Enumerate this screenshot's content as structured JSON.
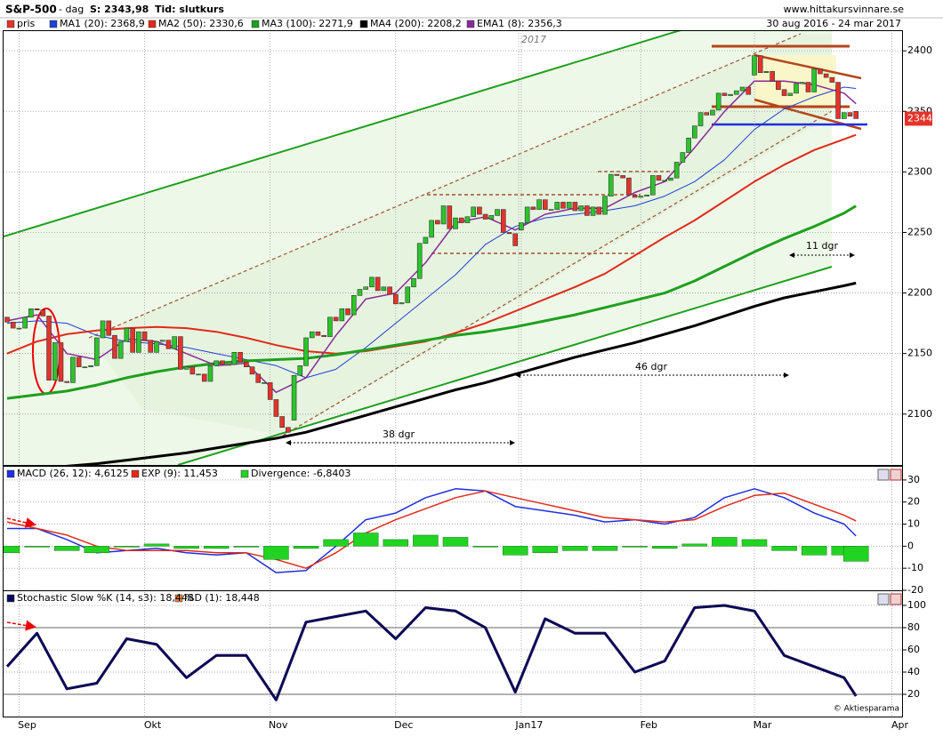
{
  "header": {
    "title": "S&P-500",
    "period": "- dag",
    "last": "S: 2343,98",
    "time": "Tid: slutkurs",
    "site": "www.hittakursvinnare.se"
  },
  "chart_data": [
    {
      "type": "candlestick",
      "subtitle": "30 aug 2016 - 24 mar 2017",
      "categories": [
        null,
        null,
        "Sep",
        null,
        null,
        null,
        null,
        null,
        null,
        null,
        null,
        null,
        null,
        null,
        null,
        null,
        null,
        null,
        null,
        null,
        null,
        null,
        null,
        "Okt",
        null,
        null,
        null,
        null,
        null,
        null,
        null,
        null,
        null,
        null,
        null,
        null,
        null,
        null,
        null,
        null,
        null,
        null,
        null,
        null,
        "Nov",
        null,
        null,
        null,
        null,
        null,
        null,
        null,
        null,
        null,
        null,
        null,
        null,
        null,
        null,
        null,
        null,
        null,
        null,
        null,
        null,
        "Dec",
        null,
        null,
        null,
        null,
        null,
        null,
        null,
        null,
        null,
        null,
        null,
        null,
        null,
        null,
        null,
        null,
        null,
        null,
        null,
        null,
        "Jan17",
        null,
        null,
        null,
        null,
        null,
        null,
        null,
        null,
        null,
        null,
        null,
        null,
        null,
        null,
        null,
        null,
        null,
        null,
        null,
        "Feb",
        null,
        null,
        null,
        null,
        null,
        null,
        null,
        null,
        null,
        null,
        null,
        null,
        null,
        null,
        null,
        null,
        null,
        null,
        "Mar",
        null,
        null,
        null,
        null,
        null,
        null,
        null,
        null,
        null,
        null,
        null,
        null,
        null,
        null,
        null,
        null,
        null,
        null,
        null,
        null,
        null,
        null,
        "Apr"
      ],
      "candles": {
        "name": "pris",
        "up_color": "#2bc52b",
        "down_color": "#e5332a",
        "open": [
          2180,
          2176,
          2171,
          2171,
          2180,
          2187,
          2186,
          2181,
          2128,
          2159,
          2127,
          2126,
          2147,
          2139,
          2139,
          2140,
          2163,
          2177,
          2165,
          2146,
          2160,
          2171,
          2151,
          2168,
          2161,
          2151,
          2160,
          2161,
          2154,
          2164,
          2137,
          2139,
          2133,
          2133,
          2127,
          2140,
          2144,
          2141,
          2141,
          2151,
          2143,
          2139,
          2133,
          2126,
          2126,
          2112,
          2098,
          2089,
          2095,
          2132,
          2140,
          2163,
          2168,
          2165,
          2164,
          2180,
          2177,
          2187,
          2182,
          2198,
          2203,
          2205,
          2213,
          2202,
          2205,
          2199,
          2191,
          2192,
          2205,
          2212,
          2241,
          2246,
          2260,
          2257,
          2272,
          2253,
          2262,
          2258,
          2263,
          2271,
          2265,
          2261,
          2264,
          2269,
          2250,
          2249,
          2252,
          2258,
          2271,
          2269,
          2277,
          2269,
          2269,
          2275,
          2270,
          2275,
          2268,
          2272,
          2264,
          2271,
          2265,
          2280,
          2298,
          2297,
          2295,
          2281,
          2279,
          2280,
          2281,
          2297,
          2293,
          2293,
          2295,
          2308,
          2316,
          2328,
          2338,
          2349,
          2347,
          2351,
          2365,
          2363,
          2364,
          2367,
          2370,
          2380,
          2396,
          2382,
          2383,
          2375,
          2368,
          2363,
          2365,
          2373,
          2374,
          2366,
          2385,
          2381,
          2378,
          2374,
          2344,
          2349,
          2350,
          null,
          null,
          null,
          null,
          null,
          null
        ],
        "close": [
          2176,
          2171,
          2171,
          2180,
          2187,
          2186,
          2181,
          2128,
          2159,
          2127,
          2126,
          2147,
          2139,
          2139,
          2140,
          2163,
          2177,
          2165,
          2146,
          2160,
          2171,
          2151,
          2168,
          2161,
          2151,
          2160,
          2161,
          2154,
          2164,
          2137,
          2139,
          2133,
          2133,
          2127,
          2140,
          2144,
          2141,
          2141,
          2151,
          2143,
          2139,
          2133,
          2126,
          2126,
          2112,
          2098,
          2089,
          2085,
          2132,
          2140,
          2163,
          2168,
          2165,
          2164,
          2180,
          2177,
          2187,
          2182,
          2198,
          2203,
          2205,
          2213,
          2202,
          2205,
          2199,
          2191,
          2192,
          2205,
          2212,
          2241,
          2246,
          2260,
          2257,
          2272,
          2253,
          2262,
          2258,
          2263,
          2271,
          2265,
          2261,
          2264,
          2269,
          2250,
          2249,
          2239,
          2258,
          2271,
          2269,
          2277,
          2269,
          2269,
          2275,
          2270,
          2275,
          2268,
          2272,
          2264,
          2271,
          2265,
          2280,
          2298,
          2297,
          2295,
          2281,
          2279,
          2280,
          2281,
          2297,
          2293,
          2293,
          2295,
          2308,
          2316,
          2328,
          2338,
          2349,
          2347,
          2351,
          2365,
          2363,
          2364,
          2367,
          2370,
          2364,
          2396,
          2382,
          2383,
          2375,
          2368,
          2363,
          2365,
          2373,
          2374,
          2366,
          2385,
          2381,
          2378,
          2374,
          2344,
          2349,
          2346,
          2344,
          null,
          null,
          null,
          null,
          null,
          null
        ]
      },
      "series": [
        {
          "name": "MA1 (20): 2368,9",
          "color": "#1f3fd8",
          "width": 1,
          "x": [
            0,
            5,
            10,
            15,
            20,
            25,
            30,
            35,
            40,
            45,
            50,
            55,
            60,
            65,
            70,
            75,
            80,
            85,
            90,
            95,
            100,
            105,
            110,
            115,
            120,
            125,
            130,
            135,
            140,
            142
          ],
          "values": [
            2175,
            2177,
            2175,
            2165,
            2160,
            2158,
            2155,
            2150,
            2145,
            2140,
            2130,
            2137,
            2155,
            2175,
            2195,
            2215,
            2240,
            2255,
            2262,
            2265,
            2268,
            2272,
            2280,
            2292,
            2310,
            2335,
            2352,
            2362,
            2370,
            2368.9
          ]
        },
        {
          "name": "MA2 (50): 2330,6",
          "color": "#e02a1a",
          "width": 2,
          "x": [
            0,
            5,
            10,
            15,
            20,
            25,
            30,
            35,
            40,
            45,
            50,
            55,
            60,
            65,
            70,
            75,
            80,
            85,
            90,
            95,
            100,
            105,
            110,
            115,
            120,
            125,
            130,
            135,
            140,
            142
          ],
          "values": [
            2150,
            2160,
            2166,
            2169,
            2171,
            2172,
            2171,
            2168,
            2163,
            2157,
            2152,
            2150,
            2152,
            2156,
            2160,
            2167,
            2175,
            2185,
            2195,
            2205,
            2216,
            2231,
            2246,
            2260,
            2276,
            2292,
            2306,
            2318,
            2327,
            2330.6
          ]
        },
        {
          "name": "MA3 (100): 2271,9",
          "color": "#1ea01e",
          "width": 3,
          "x": [
            0,
            5,
            10,
            15,
            20,
            25,
            30,
            35,
            40,
            45,
            50,
            55,
            60,
            65,
            70,
            75,
            80,
            85,
            90,
            95,
            100,
            105,
            110,
            115,
            120,
            125,
            130,
            135,
            140,
            142
          ],
          "values": [
            2113,
            2116,
            2119,
            2124,
            2130,
            2135,
            2139,
            2142,
            2144,
            2145,
            2146,
            2149,
            2153,
            2157,
            2161,
            2165,
            2168,
            2172,
            2177,
            2182,
            2188,
            2194,
            2200,
            2210,
            2222,
            2234,
            2245,
            2255,
            2266,
            2271.9
          ]
        },
        {
          "name": "MA4 (200): 2208,2",
          "color": "#000000",
          "width": 3,
          "x": [
            0,
            5,
            10,
            15,
            20,
            25,
            30,
            35,
            40,
            45,
            50,
            55,
            60,
            65,
            70,
            75,
            80,
            85,
            90,
            95,
            100,
            105,
            110,
            115,
            120,
            125,
            130,
            135,
            140,
            142
          ],
          "values": [
            2052,
            2055,
            2057,
            2059,
            2062,
            2065,
            2068,
            2072,
            2076,
            2080,
            2085,
            2092,
            2099,
            2106,
            2113,
            2120,
            2126,
            2133,
            2140,
            2147,
            2153,
            2159,
            2166,
            2173,
            2181,
            2189,
            2196,
            2201,
            2206,
            2208.2
          ]
        },
        {
          "name": "EMA1 (8): 2356,3",
          "color": "#8a2a9a",
          "width": 1.5,
          "x": [
            0,
            5,
            10,
            15,
            20,
            25,
            30,
            35,
            40,
            45,
            50,
            55,
            60,
            65,
            70,
            75,
            80,
            85,
            90,
            95,
            100,
            105,
            110,
            115,
            120,
            125,
            130,
            135,
            140,
            142
          ],
          "values": [
            2177,
            2182,
            2150,
            2145,
            2162,
            2160,
            2150,
            2140,
            2142,
            2118,
            2130,
            2165,
            2195,
            2200,
            2225,
            2258,
            2263,
            2252,
            2265,
            2270,
            2270,
            2283,
            2292,
            2320,
            2350,
            2375,
            2375,
            2372,
            2365,
            2356.3
          ]
        }
      ],
      "ylim": [
        2058,
        2417
      ],
      "yticks": [
        2100,
        2150,
        2200,
        2250,
        2300,
        2350,
        2400
      ],
      "grid": true,
      "last_price": 2344,
      "annotations": [
        "2017",
        "38 dgr",
        "46 dgr",
        "11 dgr"
      ]
    },
    {
      "type": "macd",
      "series": [
        {
          "name": "MACD (26, 12): 4,6125",
          "color": "#1f2fe0",
          "kind": "line",
          "x": [
            0,
            5,
            10,
            15,
            20,
            25,
            30,
            35,
            40,
            45,
            50,
            55,
            60,
            65,
            70,
            75,
            80,
            85,
            90,
            95,
            100,
            105,
            110,
            115,
            120,
            125,
            130,
            135,
            140,
            142
          ],
          "values": [
            8,
            8,
            3,
            -3,
            -2,
            -1,
            -3,
            -4,
            -3,
            -12,
            -11,
            0,
            12,
            15,
            22,
            26,
            25,
            18,
            16,
            14,
            11,
            12,
            10,
            13,
            22,
            26,
            22,
            15,
            10,
            4.6125
          ]
        },
        {
          "name": "EXP (9): 11,453",
          "color": "#e02a1a",
          "kind": "line",
          "x": [
            0,
            5,
            10,
            15,
            20,
            25,
            30,
            35,
            40,
            45,
            50,
            55,
            60,
            65,
            70,
            75,
            80,
            85,
            90,
            95,
            100,
            105,
            110,
            115,
            120,
            125,
            130,
            135,
            140,
            142
          ],
          "values": [
            11,
            8,
            5,
            0,
            -2,
            -2,
            -2,
            -3,
            -3,
            -6,
            -10,
            -3,
            6,
            12,
            17,
            22,
            25,
            22,
            19,
            16,
            13,
            12,
            11,
            12,
            18,
            23,
            24,
            19,
            14,
            11.453
          ]
        },
        {
          "name": "Divergence: -6,8403",
          "color": "#22d422",
          "kind": "bar",
          "x": [
            0,
            5,
            10,
            15,
            20,
            25,
            30,
            35,
            40,
            45,
            50,
            55,
            60,
            65,
            70,
            75,
            80,
            85,
            90,
            95,
            100,
            105,
            110,
            115,
            120,
            125,
            130,
            135,
            140,
            142
          ],
          "values": [
            -3,
            0,
            -2,
            -3,
            0,
            1,
            -1,
            -1,
            0,
            -6,
            -1,
            3,
            6,
            3,
            5,
            4,
            0,
            -4,
            -3,
            -2,
            -2,
            0,
            -1,
            1,
            4,
            3,
            -2,
            -4,
            -4,
            -6.8403
          ]
        }
      ],
      "ylim": [
        -20,
        35.6
      ],
      "yticks": [
        -20,
        -10,
        0,
        10,
        20,
        30
      ],
      "grid": true
    },
    {
      "type": "line",
      "series": [
        {
          "name": "%D (1): 18,448",
          "color": "#e8823a",
          "x": [
            0,
            5,
            10,
            15,
            20,
            25,
            30,
            35,
            40,
            45,
            50,
            55,
            60,
            65,
            70,
            75,
            80,
            85,
            90,
            95,
            100,
            105,
            110,
            115,
            120,
            125,
            130,
            135,
            140,
            142
          ],
          "values": [
            45,
            75,
            25,
            30,
            70,
            65,
            35,
            55,
            55,
            15,
            85,
            90,
            95,
            70,
            98,
            95,
            80,
            22,
            88,
            75,
            75,
            40,
            50,
            98,
            100,
            95,
            55,
            45,
            35,
            18.448
          ]
        },
        {
          "name": "Stochastic Slow %K (14, s3): 18,448",
          "color": "#0a0a5a",
          "x": [
            0,
            5,
            10,
            15,
            20,
            25,
            30,
            35,
            40,
            45,
            50,
            55,
            60,
            65,
            70,
            75,
            80,
            85,
            90,
            95,
            100,
            105,
            110,
            115,
            120,
            125,
            130,
            135,
            140,
            142
          ],
          "values": [
            45,
            75,
            25,
            30,
            70,
            65,
            35,
            55,
            55,
            15,
            85,
            90,
            95,
            70,
            98,
            95,
            80,
            22,
            88,
            75,
            75,
            40,
            50,
            98,
            100,
            95,
            55,
            45,
            35,
            18.448
          ]
        }
      ],
      "ylim": [
        0,
        112
      ],
      "yticks": [
        20,
        40,
        60,
        80,
        100
      ],
      "grid": true,
      "ref_lines": [
        20,
        80
      ],
      "copyright": "© Aktiesparama"
    }
  ]
}
